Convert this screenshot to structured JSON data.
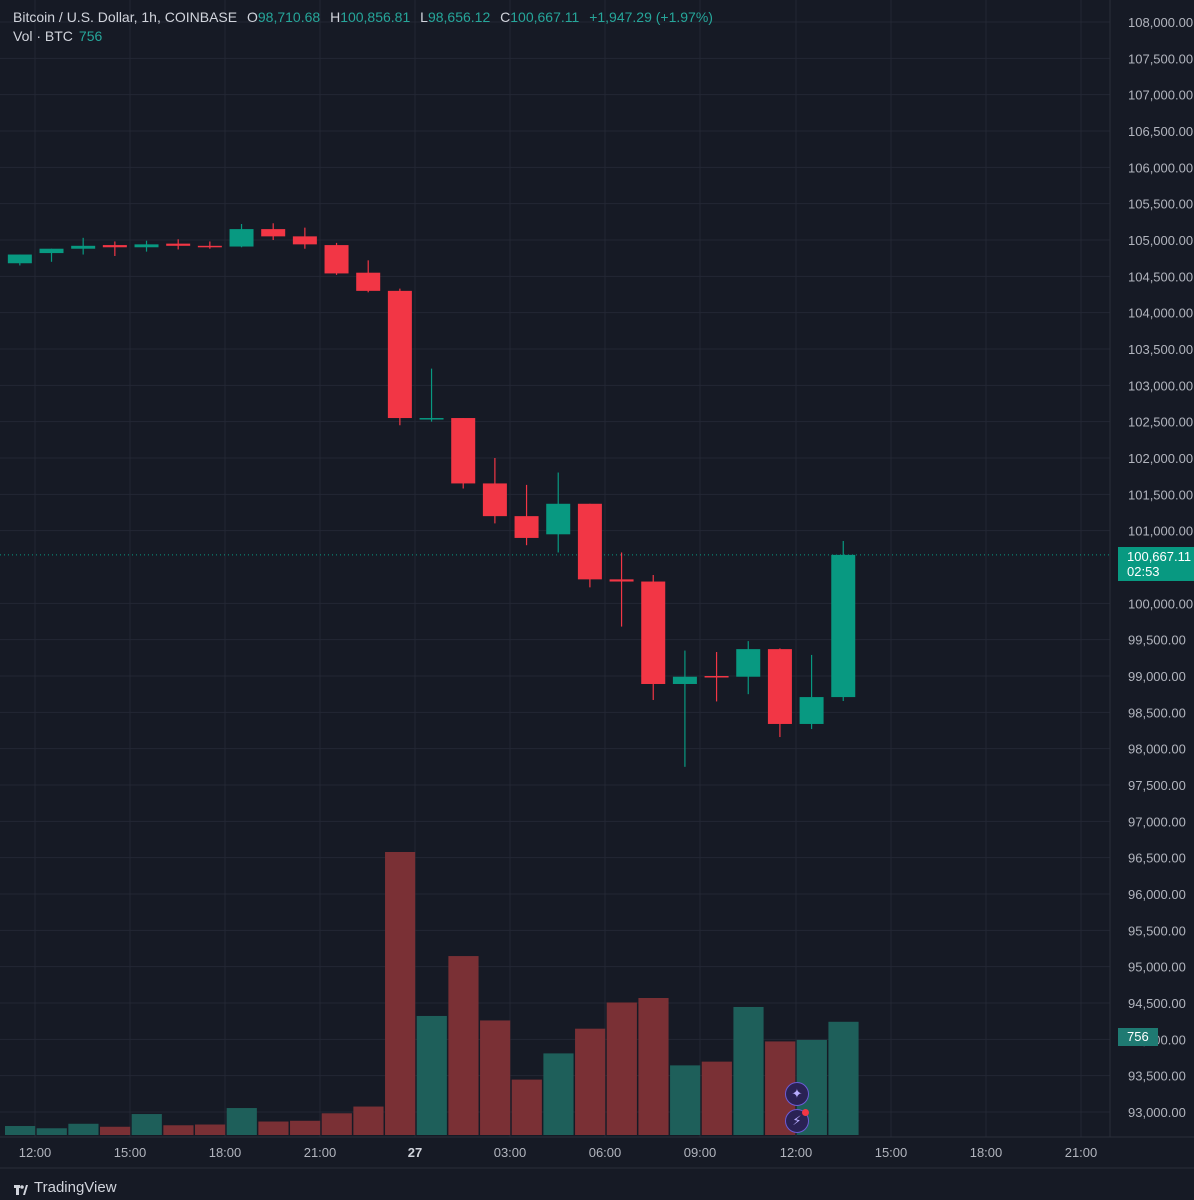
{
  "legend": {
    "symbol": "Bitcoin / U.S. Dollar, 1h, COINBASE",
    "open_label": "O",
    "open": "98,710.68",
    "high_label": "H",
    "high": "100,856.81",
    "low_label": "L",
    "low": "98,656.12",
    "close_label": "C",
    "close": "100,667.11",
    "change": "+1,947.29 (+1.97%)",
    "volume_label": "Vol · BTC",
    "volume_value": "756"
  },
  "price_tag": {
    "price": "100,667.11",
    "countdown": "02:53"
  },
  "volume_tag": "756",
  "brand": "TradingView",
  "icons": [
    "ai-sparkle-icon",
    "lightning-alert-icon"
  ],
  "colors": {
    "up": "#089981",
    "down": "#f23645",
    "vol_up": "#1e5f5a",
    "vol_down": "#7a3035",
    "background": "#161a25"
  },
  "chart_data": {
    "type": "candlestick",
    "interval": "1h",
    "price_axis": {
      "ticks": [
        "108,000.00",
        "107,500.00",
        "107,000.00",
        "106,500.00",
        "106,000.00",
        "105,500.00",
        "105,000.00",
        "104,500.00",
        "104,000.00",
        "103,500.00",
        "103,000.00",
        "102,500.00",
        "102,000.00",
        "101,500.00",
        "101,000.00",
        "100,000.00",
        "99,500.00",
        "99,000.00",
        "98,500.00",
        "98,000.00",
        "97,500.00",
        "97,000.00",
        "96,500.00",
        "96,000.00",
        "95,500.00",
        "95,000.00",
        "94,500.00",
        "94,000.00",
        "93,500.00",
        "93,000.00"
      ],
      "range": [
        92800,
        108100
      ]
    },
    "time_axis": {
      "ticks": [
        "12:00",
        "15:00",
        "18:00",
        "21:00",
        "27",
        "03:00",
        "06:00",
        "09:00",
        "12:00",
        "15:00",
        "18:00",
        "21:00"
      ]
    },
    "last_price": 100667.11,
    "candles": [
      {
        "o": 104680,
        "h": 104800,
        "l": 104650,
        "c": 104800
      },
      {
        "o": 104820,
        "h": 104880,
        "l": 104700,
        "c": 104880
      },
      {
        "o": 104880,
        "h": 105030,
        "l": 104800,
        "c": 104920
      },
      {
        "o": 104930,
        "h": 104980,
        "l": 104780,
        "c": 104900
      },
      {
        "o": 104900,
        "h": 104990,
        "l": 104840,
        "c": 104940
      },
      {
        "o": 104950,
        "h": 105010,
        "l": 104870,
        "c": 104920
      },
      {
        "o": 104920,
        "h": 104980,
        "l": 104880,
        "c": 104910
      },
      {
        "o": 104910,
        "h": 105220,
        "l": 104900,
        "c": 105150
      },
      {
        "o": 105150,
        "h": 105230,
        "l": 105000,
        "c": 105050
      },
      {
        "o": 105050,
        "h": 105170,
        "l": 104880,
        "c": 104940
      },
      {
        "o": 104930,
        "h": 104960,
        "l": 104520,
        "c": 104540
      },
      {
        "o": 104550,
        "h": 104720,
        "l": 104280,
        "c": 104300
      },
      {
        "o": 104300,
        "h": 104330,
        "l": 102450,
        "c": 102550
      },
      {
        "o": 102550,
        "h": 103230,
        "l": 102500,
        "c": 102550
      },
      {
        "o": 102550,
        "h": 102550,
        "l": 101580,
        "c": 101650
      },
      {
        "o": 101650,
        "h": 102000,
        "l": 101100,
        "c": 101200
      },
      {
        "o": 101200,
        "h": 101630,
        "l": 100800,
        "c": 100900
      },
      {
        "o": 100950,
        "h": 101800,
        "l": 100700,
        "c": 101370
      },
      {
        "o": 101370,
        "h": 101370,
        "l": 100220,
        "c": 100330
      },
      {
        "o": 100330,
        "h": 100700,
        "l": 99680,
        "c": 100300
      },
      {
        "o": 100300,
        "h": 100390,
        "l": 98670,
        "c": 98890
      },
      {
        "o": 98890,
        "h": 99350,
        "l": 97750,
        "c": 98990
      },
      {
        "o": 99000,
        "h": 99330,
        "l": 98650,
        "c": 98990
      },
      {
        "o": 98990,
        "h": 99480,
        "l": 98750,
        "c": 99370
      },
      {
        "o": 99370,
        "h": 99380,
        "l": 98160,
        "c": 98340
      },
      {
        "o": 98340,
        "h": 99290,
        "l": 98270,
        "c": 98710
      },
      {
        "o": 98710,
        "h": 100857,
        "l": 98656,
        "c": 100667
      }
    ],
    "volume": [
      60,
      45,
      75,
      55,
      140,
      65,
      70,
      180,
      90,
      95,
      145,
      190,
      1890,
      795,
      1195,
      765,
      370,
      545,
      710,
      885,
      915,
      465,
      490,
      855,
      625,
      635,
      756
    ]
  }
}
